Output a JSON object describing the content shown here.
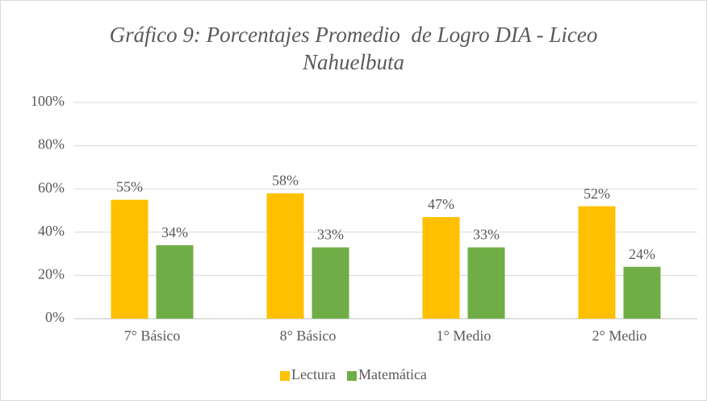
{
  "chart_data": {
    "type": "bar",
    "title": "Gráfico 9: Porcentajes Promedio  de Logro DIA - Liceo Nahuelbuta",
    "categories": [
      "7° Básico",
      "8° Básico",
      "1° Medio",
      "2° Medio"
    ],
    "series": [
      {
        "name": "Lectura",
        "color": "#FFC000",
        "values": [
          55,
          58,
          47,
          52
        ],
        "value_labels": [
          "55%",
          "58%",
          "47%",
          "52%"
        ]
      },
      {
        "name": "Matemática",
        "color": "#70AD47",
        "values": [
          34,
          33,
          33,
          24
        ],
        "value_labels": [
          "34%",
          "33%",
          "33%",
          "24%"
        ]
      }
    ],
    "ylim": [
      0,
      100
    ],
    "yticks": [
      {
        "value": 0,
        "label": "0%"
      },
      {
        "value": 20,
        "label": "20%"
      },
      {
        "value": 40,
        "label": "40%"
      },
      {
        "value": 60,
        "label": "60%"
      },
      {
        "value": 80,
        "label": "80%"
      },
      {
        "value": 100,
        "label": "100%"
      }
    ],
    "grid": true,
    "legend": "bottom"
  }
}
